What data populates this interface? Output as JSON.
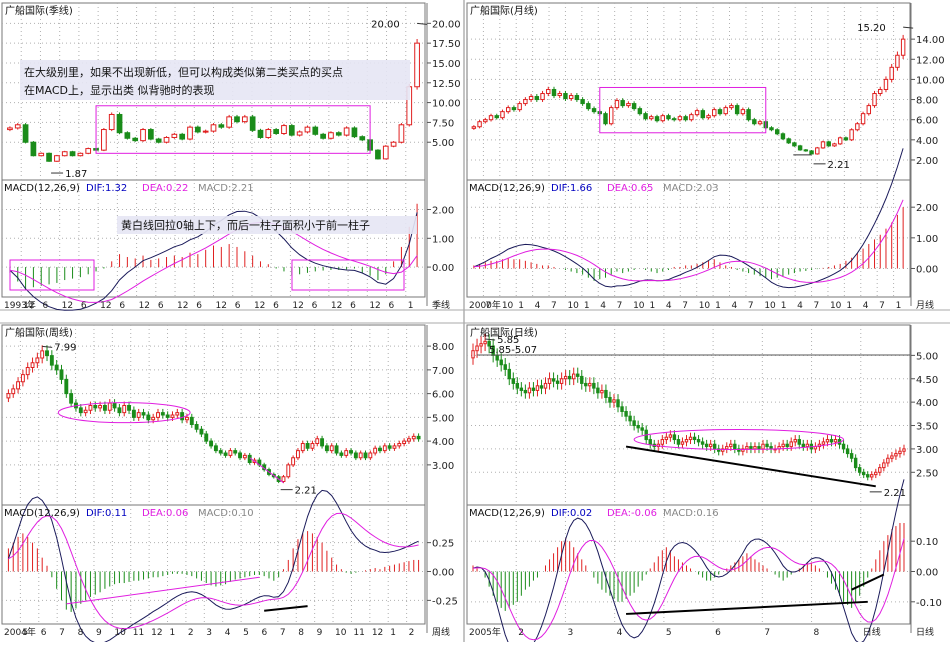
{
  "colors": {
    "up": "#e02020",
    "down": "#1a8c1a",
    "dif": "#1a1a5a",
    "dea": "#e01ee0",
    "label_blue": "#0000c0",
    "box": "#e01ee0",
    "grid": "#b0b0b0"
  },
  "panels": [
    {
      "id": "quarterly",
      "title": "广船国际(季线)",
      "period_label": "季线",
      "price_ticks": [
        "20.00",
        "17.50",
        "15.00",
        "12.50",
        "10.00",
        "7.50",
        "5.00"
      ],
      "price_range": [
        2,
        20.8
      ],
      "high_label": "20.00",
      "high_value": 20.0,
      "low_label": "1.87",
      "low_value": 1.87,
      "annotation_lines": [
        "在大级别里，如果不出现新低，但可以构成类似第二类买点的买点",
        "在MACD上，显示出类 似背驰时的表现"
      ],
      "macd_annotation": "黄白线回拉0轴上下，而后一柱子面积小于前一柱子",
      "macd": {
        "title": "MACD(12,26,9)",
        "dif": "DIF:1.32",
        "dea": "DEA:0.22",
        "macd": "MACD:2.21",
        "ticks": [
          "2.00",
          "1.00",
          "0.00"
        ],
        "range": [
          -0.9,
          2.4
        ]
      },
      "date_labels": [
        "1993年",
        "12",
        "6",
        "12",
        "6",
        "12",
        "6",
        "12",
        "6",
        "12",
        "6",
        "12",
        "6",
        "12",
        "6",
        "12",
        "6",
        "12",
        "6",
        "12",
        "6",
        "1"
      ],
      "chart_data": {
        "type": "candlestick",
        "close": [
          6.8,
          7.2,
          5.0,
          3.3,
          3.6,
          2.6,
          3.3,
          3.8,
          3.3,
          3.6,
          4.2,
          4.0,
          6.6,
          8.5,
          6.2,
          5.5,
          5.2,
          6.6,
          5.4,
          5.0,
          5.6,
          6.0,
          5.4,
          6.9,
          6.3,
          6.4,
          7.2,
          6.9,
          8.2,
          7.6,
          8.2,
          6.5,
          5.6,
          6.6,
          6.1,
          7.1,
          5.9,
          6.3,
          6.9,
          6.0,
          5.5,
          6.2,
          5.9,
          6.8,
          5.7,
          5.3,
          4.0,
          2.9,
          4.5,
          5.0,
          7.2,
          12.0,
          17.5
        ],
        "macd_hist": [
          -0.2,
          -0.5,
          -0.8,
          -0.7,
          -0.65,
          -0.6,
          -0.55,
          -0.45,
          -0.4,
          -0.35,
          -0.25,
          -0.15,
          -0.05,
          0.2,
          0.45,
          0.35,
          0.3,
          0.4,
          0.25,
          0.3,
          0.35,
          0.4,
          0.35,
          0.5,
          0.45,
          0.6,
          0.75,
          0.7,
          0.8,
          0.7,
          0.55,
          0.4,
          0.2,
          0.1,
          -0.05,
          -0.15,
          -0.3,
          -0.25,
          -0.2,
          -0.15,
          -0.12,
          -0.1,
          -0.1,
          -0.08,
          -0.05,
          -0.2,
          -0.3,
          -0.45,
          -0.25,
          0.2,
          0.7,
          1.4,
          2.2
        ]
      }
    },
    {
      "id": "monthly",
      "title": "广船国际(月线)",
      "period_label": "月线",
      "price_ticks": [
        "14.00",
        "12.00",
        "10.00",
        "8.00",
        "6.00",
        "4.00",
        "2.00"
      ],
      "price_range": [
        1.4,
        16.2
      ],
      "high_label": "15.20",
      "high_value": 15.2,
      "low_label": "2.21",
      "low_value": 2.21,
      "macd": {
        "title": "MACD(12,26,9)",
        "dif": "DIF:1.66",
        "dea": "DEA:0.65",
        "macd": "MACD:2.03",
        "ticks": [
          "2.00",
          "1.00",
          "0.00"
        ],
        "range": [
          -0.8,
          2.3
        ]
      },
      "date_labels": [
        "2000年",
        "7",
        "10",
        "1",
        "4",
        "7",
        "10",
        "1",
        "4",
        "7",
        "10",
        "1",
        "4",
        "7",
        "10",
        "1",
        "4",
        "7",
        "10",
        "1",
        "4",
        "7",
        "10",
        "1",
        "4",
        "7",
        "1"
      ],
      "chart_data": {
        "type": "candlestick",
        "close": [
          5.3,
          5.8,
          6.0,
          6.4,
          6.2,
          6.8,
          7.2,
          7.0,
          7.6,
          8.0,
          8.3,
          8.0,
          8.6,
          9.0,
          8.4,
          8.6,
          8.1,
          8.4,
          8.0,
          7.6,
          7.1,
          6.8,
          6.6,
          5.6,
          7.2,
          7.9,
          7.4,
          7.6,
          7.1,
          6.6,
          6.1,
          6.3,
          5.9,
          6.4,
          6.1,
          6.0,
          6.3,
          6.0,
          6.5,
          6.9,
          6.2,
          6.4,
          7.0,
          6.6,
          7.2,
          7.4,
          6.6,
          7.0,
          6.0,
          5.6,
          5.8,
          5.2,
          5.0,
          4.6,
          4.1,
          3.7,
          3.4,
          3.0,
          2.9,
          2.6,
          3.2,
          3.8,
          3.4,
          3.6,
          4.2,
          4.0,
          5.0,
          5.6,
          6.6,
          7.4,
          8.6,
          9.0,
          10.0,
          11.2,
          12.4,
          14.0
        ],
        "macd_hist": [
          0.1,
          0.15,
          0.2,
          0.25,
          0.25,
          0.3,
          0.35,
          0.3,
          0.3,
          0.25,
          0.2,
          0.15,
          0.1,
          0.1,
          0.05,
          0.0,
          -0.05,
          -0.1,
          -0.15,
          -0.2,
          -0.3,
          -0.4,
          -0.35,
          -0.3,
          -0.2,
          -0.1,
          -0.15,
          -0.1,
          -0.05,
          0.0,
          -0.05,
          -0.1,
          -0.15,
          -0.1,
          -0.05,
          0.05,
          0.05,
          0.1,
          0.1,
          0.15,
          0.2,
          0.25,
          0.3,
          0.2,
          0.1,
          0.05,
          -0.05,
          -0.1,
          -0.15,
          -0.2,
          -0.25,
          -0.3,
          -0.35,
          -0.3,
          -0.25,
          -0.2,
          -0.15,
          -0.1,
          -0.08,
          -0.05,
          -0.02,
          0.02,
          0.05,
          0.1,
          0.15,
          0.25,
          0.35,
          0.5,
          0.65,
          0.8,
          0.95,
          1.1,
          1.3,
          1.5,
          1.75,
          2.0
        ]
      }
    },
    {
      "id": "weekly",
      "title": "广船国际(周线)",
      "period_label": "周线",
      "price_ticks": [
        "8.00",
        "7.00",
        "6.00",
        "5.00",
        "4.00",
        "3.00"
      ],
      "price_range": [
        1.9,
        8.3
      ],
      "high_label": "7.99",
      "high_value": 7.99,
      "low_label": "2.21",
      "low_value": 2.21,
      "macd": {
        "title": "MACD(12,26,9)",
        "dif": "DIF:0.11",
        "dea": "DEA:0.06",
        "macd": "MACD:0.10",
        "ticks": [
          "0.25",
          "0.00",
          "-0.25"
        ],
        "range": [
          -0.42,
          0.42
        ]
      },
      "date_labels": [
        "2004年",
        "5",
        "6",
        "7",
        "8",
        "9",
        "10",
        "11",
        "12",
        "1",
        "2",
        "3",
        "4",
        "5",
        "6",
        "7",
        "8",
        "9",
        "10",
        "11",
        "12",
        "1",
        "2"
      ],
      "chart_data": {
        "type": "candlestick",
        "close": [
          6.0,
          6.2,
          6.5,
          6.8,
          7.1,
          7.3,
          7.5,
          7.8,
          7.6,
          7.2,
          7.0,
          6.6,
          6.0,
          5.6,
          5.4,
          5.2,
          5.3,
          5.5,
          5.4,
          5.5,
          5.3,
          5.6,
          5.4,
          5.2,
          5.5,
          5.3,
          5.0,
          5.2,
          5.1,
          4.9,
          5.0,
          5.2,
          5.1,
          5.0,
          5.1,
          5.2,
          4.9,
          5.0,
          4.7,
          4.5,
          4.3,
          4.0,
          3.8,
          3.6,
          3.5,
          3.4,
          3.6,
          3.5,
          3.3,
          3.4,
          3.1,
          3.2,
          3.0,
          2.8,
          2.6,
          2.5,
          2.3,
          2.5,
          3.0,
          3.3,
          3.6,
          3.9,
          3.7,
          3.9,
          4.1,
          3.8,
          3.6,
          3.8,
          3.5,
          3.4,
          3.6,
          3.5,
          3.3,
          3.5,
          3.3,
          3.5,
          3.7,
          3.6,
          3.8,
          3.7,
          3.8,
          3.9,
          4.0,
          4.1,
          4.2,
          4.1
        ],
        "macd_hist": [
          0.2,
          0.25,
          0.3,
          0.33,
          0.3,
          0.25,
          0.2,
          0.12,
          0.05,
          -0.05,
          -0.15,
          -0.25,
          -0.33,
          -0.35,
          -0.32,
          -0.28,
          -0.25,
          -0.22,
          -0.2,
          -0.18,
          -0.15,
          -0.13,
          -0.11,
          -0.1,
          -0.1,
          -0.09,
          -0.08,
          -0.08,
          -0.07,
          -0.06,
          -0.05,
          -0.05,
          -0.04,
          -0.03,
          -0.02,
          -0.02,
          -0.02,
          -0.03,
          -0.04,
          -0.06,
          -0.08,
          -0.1,
          -0.12,
          -0.13,
          -0.12,
          -0.11,
          -0.09,
          -0.07,
          -0.06,
          -0.05,
          -0.04,
          -0.03,
          -0.03,
          -0.04,
          -0.06,
          -0.08,
          -0.05,
          0.02,
          0.1,
          0.2,
          0.28,
          0.33,
          0.35,
          0.33,
          0.3,
          0.25,
          0.18,
          0.12,
          0.06,
          0.02,
          -0.01,
          -0.02,
          -0.01,
          0.0,
          0.01,
          0.02,
          0.03,
          0.02,
          0.04,
          0.05,
          0.06,
          0.07,
          0.08,
          0.09,
          0.1,
          0.1
        ]
      }
    },
    {
      "id": "daily",
      "title": "广船国际(日线)",
      "period_label": "日线",
      "price_ticks": [
        "5.00",
        "4.50",
        "4.00",
        "3.50",
        "3.00",
        "2.50"
      ],
      "price_range": [
        2.1,
        5.35
      ],
      "ref_label": "5.85-5.07",
      "high_label": "5.85",
      "low_label": "2.21",
      "low_value": 2.21,
      "macd": {
        "title": "MACD(12,26,9)",
        "dif": "DIF:0.02",
        "dea": "DEA:-0.06",
        "macd": "MACD:0.16",
        "ticks": [
          "0.10",
          "0.00",
          "-0.10"
        ],
        "range": [
          -0.16,
          0.16
        ]
      },
      "date_labels": [
        "2005年",
        "2",
        "3",
        "4",
        "5",
        "6",
        "7",
        "8",
        "日线"
      ],
      "chart_data": {
        "type": "candlestick",
        "close": [
          5.1,
          5.2,
          5.25,
          5.3,
          5.2,
          5.0,
          4.9,
          4.8,
          4.7,
          4.5,
          4.4,
          4.3,
          4.25,
          4.2,
          4.3,
          4.25,
          4.35,
          4.3,
          4.4,
          4.5,
          4.45,
          4.4,
          4.5,
          4.55,
          4.5,
          4.6,
          4.55,
          4.4,
          4.35,
          4.4,
          4.3,
          4.2,
          4.25,
          4.1,
          4.0,
          4.05,
          3.9,
          3.8,
          3.7,
          3.6,
          3.5,
          3.45,
          3.4,
          3.2,
          3.1,
          3.05,
          3.1,
          3.2,
          3.25,
          3.3,
          3.2,
          3.1,
          3.15,
          3.2,
          3.25,
          3.2,
          3.15,
          3.1,
          3.05,
          3.1,
          3.0,
          2.95,
          3.0,
          3.05,
          3.1,
          3.0,
          2.95,
          3.0,
          3.05,
          3.0,
          3.05,
          3.0,
          3.1,
          3.05,
          3.0,
          3.0,
          3.05,
          3.1,
          3.05,
          3.15,
          3.2,
          3.1,
          3.05,
          3.1,
          3.0,
          3.05,
          3.1,
          3.15,
          3.2,
          3.15,
          3.2,
          3.1,
          3.0,
          2.9,
          2.8,
          2.6,
          2.5,
          2.45,
          2.4,
          2.45,
          2.5,
          2.6,
          2.7,
          2.8,
          2.85,
          2.9,
          2.95,
          3.0
        ],
        "macd_hist": [
          0.02,
          0.01,
          0.0,
          -0.02,
          -0.05,
          -0.08,
          -0.1,
          -0.12,
          -0.13,
          -0.12,
          -0.11,
          -0.1,
          -0.08,
          -0.06,
          -0.05,
          -0.03,
          -0.02,
          0.0,
          0.02,
          0.04,
          0.06,
          0.08,
          0.1,
          0.11,
          0.1,
          0.08,
          0.06,
          0.04,
          0.02,
          0.0,
          -0.02,
          -0.04,
          -0.06,
          -0.07,
          -0.08,
          -0.09,
          -0.1,
          -0.1,
          -0.09,
          -0.08,
          -0.07,
          -0.05,
          -0.03,
          -0.01,
          0.01,
          0.03,
          0.05,
          0.07,
          0.08,
          0.07,
          0.05,
          0.04,
          0.03,
          0.02,
          0.01,
          0.0,
          -0.01,
          -0.02,
          -0.03,
          -0.03,
          -0.02,
          -0.01,
          0.0,
          0.01,
          0.02,
          0.03,
          0.04,
          0.05,
          0.06,
          0.05,
          0.04,
          0.03,
          0.02,
          0.01,
          0.0,
          -0.01,
          -0.02,
          -0.03,
          -0.02,
          -0.01,
          0.0,
          0.01,
          0.02,
          0.03,
          0.03,
          0.02,
          0.01,
          0.0,
          -0.02,
          -0.04,
          -0.06,
          -0.08,
          -0.1,
          -0.11,
          -0.12,
          -0.1,
          -0.08,
          -0.05,
          -0.02,
          0.01,
          0.04,
          0.07,
          0.1,
          0.12,
          0.14,
          0.15,
          0.16,
          0.16
        ]
      }
    }
  ]
}
